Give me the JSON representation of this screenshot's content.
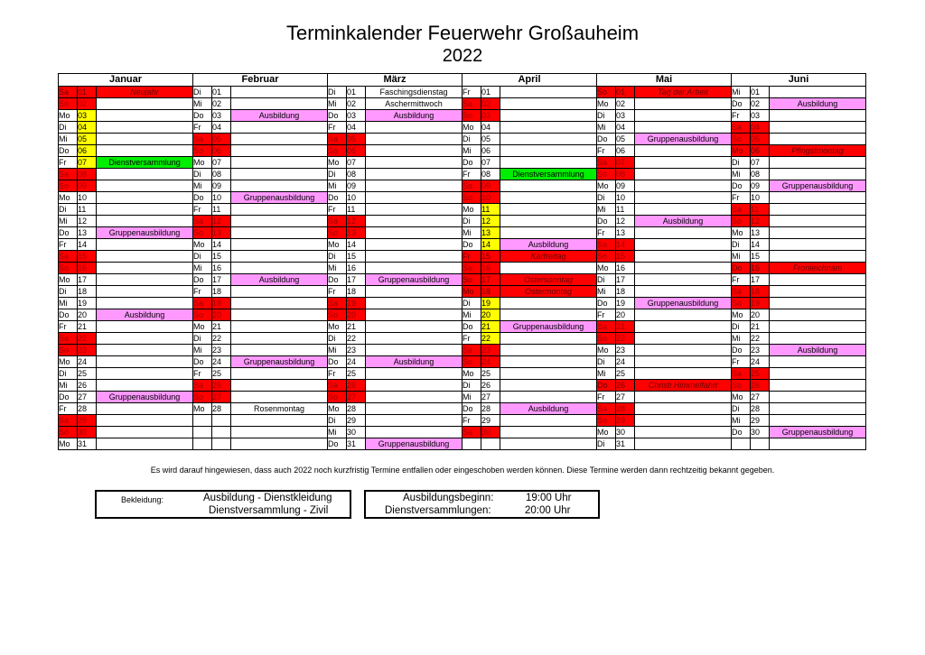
{
  "title": "Terminkalender Feuerwehr Großauheim",
  "year": "2022",
  "months": [
    "Januar",
    "Februar",
    "März",
    "April",
    "Mai",
    "Juni"
  ],
  "calendar": [
    [
      [
        "Sa",
        "01",
        "Neujahr",
        "hol"
      ],
      [
        "So",
        "02",
        "",
        ""
      ],
      [
        "Mo",
        "03",
        "",
        "y"
      ],
      [
        "Di",
        "04",
        "",
        "y"
      ],
      [
        "Mi",
        "05",
        "",
        "y"
      ],
      [
        "Do",
        "06",
        "",
        "y"
      ],
      [
        "Fr",
        "07",
        "Dienstversammlung",
        "yg"
      ],
      [
        "Sa",
        "08",
        "",
        ""
      ],
      [
        "So",
        "09",
        "",
        ""
      ],
      [
        "Mo",
        "10",
        "",
        ""
      ],
      [
        "Di",
        "11",
        "",
        ""
      ],
      [
        "Mi",
        "12",
        "",
        ""
      ],
      [
        "Do",
        "13",
        "Gruppenausbildung",
        "p"
      ],
      [
        "Fr",
        "14",
        "",
        ""
      ],
      [
        "Sa",
        "15",
        "",
        ""
      ],
      [
        "So",
        "16",
        "",
        ""
      ],
      [
        "Mo",
        "17",
        "",
        ""
      ],
      [
        "Di",
        "18",
        "",
        ""
      ],
      [
        "Mi",
        "19",
        "",
        ""
      ],
      [
        "Do",
        "20",
        "Ausbildung",
        "p"
      ],
      [
        "Fr",
        "21",
        "",
        ""
      ],
      [
        "Sa",
        "22",
        "",
        ""
      ],
      [
        "So",
        "23",
        "",
        ""
      ],
      [
        "Mo",
        "24",
        "",
        ""
      ],
      [
        "Di",
        "25",
        "",
        ""
      ],
      [
        "Mi",
        "26",
        "",
        ""
      ],
      [
        "Do",
        "27",
        "Gruppenausbildung",
        "p"
      ],
      [
        "Fr",
        "28",
        "",
        ""
      ],
      [
        "Sa",
        "29",
        "",
        ""
      ],
      [
        "So",
        "30",
        "",
        ""
      ],
      [
        "Mo",
        "31",
        "",
        ""
      ]
    ],
    [
      [
        "Di",
        "01",
        "",
        ""
      ],
      [
        "Mi",
        "02",
        "",
        ""
      ],
      [
        "Do",
        "03",
        "Ausbildung",
        "p"
      ],
      [
        "Fr",
        "04",
        "",
        ""
      ],
      [
        "Sa",
        "05",
        "",
        ""
      ],
      [
        "So",
        "06",
        "",
        ""
      ],
      [
        "Mo",
        "07",
        "",
        ""
      ],
      [
        "Di",
        "08",
        "",
        ""
      ],
      [
        "Mi",
        "09",
        "",
        ""
      ],
      [
        "Do",
        "10",
        "Gruppenausbildung",
        "p"
      ],
      [
        "Fr",
        "11",
        "",
        ""
      ],
      [
        "Sa",
        "12",
        "",
        ""
      ],
      [
        "So",
        "13",
        "",
        ""
      ],
      [
        "Mo",
        "14",
        "",
        ""
      ],
      [
        "Di",
        "15",
        "",
        ""
      ],
      [
        "Mi",
        "16",
        "",
        ""
      ],
      [
        "Do",
        "17",
        "Ausbildung",
        "p"
      ],
      [
        "Fr",
        "18",
        "",
        ""
      ],
      [
        "Sa",
        "19",
        "",
        ""
      ],
      [
        "So",
        "20",
        "",
        ""
      ],
      [
        "Mo",
        "21",
        "",
        ""
      ],
      [
        "Di",
        "22",
        "",
        ""
      ],
      [
        "Mi",
        "23",
        "",
        ""
      ],
      [
        "Do",
        "24",
        "Gruppenausbildung",
        "p"
      ],
      [
        "Fr",
        "25",
        "",
        ""
      ],
      [
        "Sa",
        "26",
        "",
        ""
      ],
      [
        "So",
        "27",
        "",
        ""
      ],
      [
        "Mo",
        "28",
        "Rosenmontag",
        "w"
      ],
      [
        "",
        "",
        "",
        ""
      ],
      [
        "",
        "",
        "",
        ""
      ],
      [
        "",
        "",
        "",
        ""
      ]
    ],
    [
      [
        "Di",
        "01",
        "Faschingsdienstag",
        "w"
      ],
      [
        "Mi",
        "02",
        "Aschermittwoch",
        "w"
      ],
      [
        "Do",
        "03",
        "Ausbildung",
        "p"
      ],
      [
        "Fr",
        "04",
        "",
        ""
      ],
      [
        "Sa",
        "05",
        "",
        ""
      ],
      [
        "So",
        "06",
        "",
        ""
      ],
      [
        "Mo",
        "07",
        "",
        ""
      ],
      [
        "Di",
        "08",
        "",
        ""
      ],
      [
        "Mi",
        "09",
        "",
        ""
      ],
      [
        "Do",
        "10",
        "",
        ""
      ],
      [
        "Fr",
        "11",
        "",
        ""
      ],
      [
        "Sa",
        "12",
        "",
        ""
      ],
      [
        "So",
        "13",
        "",
        ""
      ],
      [
        "Mo",
        "14",
        "",
        ""
      ],
      [
        "Di",
        "15",
        "",
        ""
      ],
      [
        "Mi",
        "16",
        "",
        ""
      ],
      [
        "Do",
        "17",
        "Gruppenausbildung",
        "p"
      ],
      [
        "Fr",
        "18",
        "",
        ""
      ],
      [
        "Sa",
        "19",
        "",
        ""
      ],
      [
        "So",
        "20",
        "",
        ""
      ],
      [
        "Mo",
        "21",
        "",
        ""
      ],
      [
        "Di",
        "22",
        "",
        ""
      ],
      [
        "Mi",
        "23",
        "",
        ""
      ],
      [
        "Do",
        "24",
        "Ausbildung",
        "p"
      ],
      [
        "Fr",
        "25",
        "",
        ""
      ],
      [
        "Sa",
        "26",
        "",
        ""
      ],
      [
        "So",
        "27",
        "",
        ""
      ],
      [
        "Mo",
        "28",
        "",
        ""
      ],
      [
        "Di",
        "29",
        "",
        ""
      ],
      [
        "Mi",
        "30",
        "",
        ""
      ],
      [
        "Do",
        "31",
        "Gruppenausbildung",
        "p"
      ]
    ],
    [
      [
        "Fr",
        "01",
        "",
        ""
      ],
      [
        "Sa",
        "02",
        "",
        ""
      ],
      [
        "So",
        "03",
        "",
        ""
      ],
      [
        "Mo",
        "04",
        "",
        ""
      ],
      [
        "Di",
        "05",
        "",
        ""
      ],
      [
        "Mi",
        "06",
        "",
        ""
      ],
      [
        "Do",
        "07",
        "",
        ""
      ],
      [
        "Fr",
        "08",
        "Dienstversammlung",
        "g"
      ],
      [
        "Sa",
        "09",
        "",
        ""
      ],
      [
        "So",
        "10",
        "",
        ""
      ],
      [
        "Mo",
        "11",
        "",
        "y"
      ],
      [
        "Di",
        "12",
        "",
        "y"
      ],
      [
        "Mi",
        "13",
        "",
        "y"
      ],
      [
        "Do",
        "14",
        "Ausbildung",
        "yp"
      ],
      [
        "Fr",
        "15",
        "Karfreitag",
        "hol"
      ],
      [
        "Sa",
        "16",
        "",
        ""
      ],
      [
        "So",
        "17",
        "Ostersonntag",
        "hol"
      ],
      [
        "Mo",
        "18",
        "Ostermontag",
        "hol"
      ],
      [
        "Di",
        "19",
        "",
        "y"
      ],
      [
        "Mi",
        "20",
        "",
        "y"
      ],
      [
        "Do",
        "21",
        "Gruppenausbildung",
        "yp"
      ],
      [
        "Fr",
        "22",
        "",
        "y"
      ],
      [
        "Sa",
        "23",
        "",
        ""
      ],
      [
        "So",
        "24",
        "",
        ""
      ],
      [
        "Mo",
        "25",
        "",
        ""
      ],
      [
        "Di",
        "26",
        "",
        ""
      ],
      [
        "Mi",
        "27",
        "",
        ""
      ],
      [
        "Do",
        "28",
        "Ausbildung",
        "p"
      ],
      [
        "Fr",
        "29",
        "",
        ""
      ],
      [
        "Sa",
        "30",
        "",
        ""
      ],
      [
        "",
        "",
        "",
        ""
      ]
    ],
    [
      [
        "So",
        "01",
        "Tag der Arbeit",
        "hol"
      ],
      [
        "Mo",
        "02",
        "",
        ""
      ],
      [
        "Di",
        "03",
        "",
        ""
      ],
      [
        "Mi",
        "04",
        "",
        ""
      ],
      [
        "Do",
        "05",
        "Gruppenausbildung",
        "p"
      ],
      [
        "Fr",
        "06",
        "",
        ""
      ],
      [
        "Sa",
        "07",
        "",
        ""
      ],
      [
        "So",
        "08",
        "",
        ""
      ],
      [
        "Mo",
        "09",
        "",
        ""
      ],
      [
        "Di",
        "10",
        "",
        ""
      ],
      [
        "Mi",
        "11",
        "",
        ""
      ],
      [
        "Do",
        "12",
        "Ausbildung",
        "p"
      ],
      [
        "Fr",
        "13",
        "",
        ""
      ],
      [
        "Sa",
        "14",
        "",
        ""
      ],
      [
        "So",
        "15",
        "",
        ""
      ],
      [
        "Mo",
        "16",
        "",
        ""
      ],
      [
        "Di",
        "17",
        "",
        ""
      ],
      [
        "Mi",
        "18",
        "",
        ""
      ],
      [
        "Do",
        "19",
        "Gruppenausbildung",
        "p"
      ],
      [
        "Fr",
        "20",
        "",
        ""
      ],
      [
        "Sa",
        "21",
        "",
        ""
      ],
      [
        "So",
        "22",
        "",
        ""
      ],
      [
        "Mo",
        "23",
        "",
        ""
      ],
      [
        "Di",
        "24",
        "",
        ""
      ],
      [
        "Mi",
        "25",
        "",
        ""
      ],
      [
        "Do",
        "26",
        "Christi Himmelfahrt",
        "hol"
      ],
      [
        "Fr",
        "27",
        "",
        ""
      ],
      [
        "Sa",
        "28",
        "",
        ""
      ],
      [
        "So",
        "29",
        "",
        ""
      ],
      [
        "Mo",
        "30",
        "",
        ""
      ],
      [
        "Di",
        "31",
        "",
        ""
      ]
    ],
    [
      [
        "Mi",
        "01",
        "",
        ""
      ],
      [
        "Do",
        "02",
        "Ausbildung",
        "p"
      ],
      [
        "Fr",
        "03",
        "",
        ""
      ],
      [
        "Sa",
        "04",
        "",
        ""
      ],
      [
        "So",
        "05",
        "",
        ""
      ],
      [
        "Mo",
        "06",
        "Pfingstmontag",
        "hol"
      ],
      [
        "Di",
        "07",
        "",
        ""
      ],
      [
        "Mi",
        "08",
        "",
        ""
      ],
      [
        "Do",
        "09",
        "Gruppenausbildung",
        "p"
      ],
      [
        "Fr",
        "10",
        "",
        ""
      ],
      [
        "Sa",
        "11",
        "",
        ""
      ],
      [
        "So",
        "12",
        "",
        ""
      ],
      [
        "Mo",
        "13",
        "",
        ""
      ],
      [
        "Di",
        "14",
        "",
        ""
      ],
      [
        "Mi",
        "15",
        "",
        ""
      ],
      [
        "Do",
        "16",
        "Fronleichnam",
        "hol"
      ],
      [
        "Fr",
        "17",
        "",
        ""
      ],
      [
        "Sa",
        "18",
        "",
        ""
      ],
      [
        "So",
        "19",
        "",
        ""
      ],
      [
        "Mo",
        "20",
        "",
        ""
      ],
      [
        "Di",
        "21",
        "",
        ""
      ],
      [
        "Mi",
        "22",
        "",
        ""
      ],
      [
        "Do",
        "23",
        "Ausbildung",
        "p"
      ],
      [
        "Fr",
        "24",
        "",
        ""
      ],
      [
        "Sa",
        "25",
        "",
        ""
      ],
      [
        "So",
        "26",
        "",
        ""
      ],
      [
        "Mo",
        "27",
        "",
        ""
      ],
      [
        "Di",
        "28",
        "",
        ""
      ],
      [
        "Mi",
        "29",
        "",
        ""
      ],
      [
        "Do",
        "30",
        "Gruppenausbildung",
        "p"
      ],
      [
        "",
        "",
        "",
        ""
      ]
    ]
  ],
  "note": "Es wird darauf hingewiesen, dass auch 2022 noch kurzfristig Termine entfallen oder eingeschoben werden können. Diese Termine werden dann rechtzeitig bekannt gegeben.",
  "legend1": {
    "label": "Bekleidung:",
    "line1": "Ausbildung - Dienstkleidung",
    "line2": "Dienstversammlung - Zivil"
  },
  "legend2": {
    "k1": "Ausbildungsbeginn:",
    "v1": "19:00 Uhr",
    "k2": "Dienstversammlungen:",
    "v2": "20:00 Uhr"
  },
  "colors": {
    "weekend": "#ff0000",
    "holiday": "#ff0000",
    "vacation": "#ffff00",
    "training": "#ff99ff",
    "meeting": "#00ee00"
  }
}
